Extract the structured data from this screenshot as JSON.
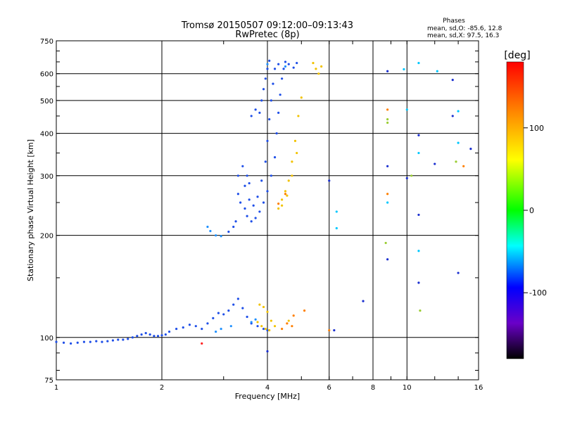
{
  "chart_data": {
    "type": "scatter",
    "title": "Tromsø 20150507 09:12:00–09:13:43",
    "subtitle": "RwPretec (8p)",
    "xlabel": "Frequency [MHz]",
    "ylabel": "Stationary phase Virtual Height [km]",
    "x_scale": "log",
    "y_scale": "log",
    "xlim": [
      1,
      16
    ],
    "ylim": [
      75,
      750
    ],
    "x_ticks": [
      1,
      2,
      4,
      6,
      8,
      10,
      16
    ],
    "y_ticks": [
      75,
      100,
      200,
      300,
      400,
      500,
      600,
      750
    ],
    "grid": true,
    "phases": {
      "title": "Phases",
      "line_o": "mean, sd,O: -85.6, 12.8",
      "line_x": "mean, sd,X:  97.5, 16.3"
    },
    "colorbar": {
      "label": "[deg]",
      "range": [
        -180,
        180
      ],
      "ticks": [
        100,
        0,
        -100
      ],
      "colors": [
        "#ff0000",
        "#ff8800",
        "#ffff00",
        "#00ff00",
        "#00ffff",
        "#0000ff",
        "#6a00c8",
        "#000000"
      ]
    },
    "series": [
      {
        "phase_deg": -95,
        "color": "#1f4fe8",
        "points": [
          [
            1.0,
            97
          ],
          [
            1.05,
            96.5
          ],
          [
            1.1,
            96
          ],
          [
            1.15,
            96.5
          ],
          [
            1.2,
            97
          ],
          [
            1.25,
            97
          ],
          [
            1.3,
            97.5
          ],
          [
            1.35,
            97
          ],
          [
            1.4,
            97.5
          ],
          [
            1.45,
            98
          ],
          [
            1.5,
            98.5
          ],
          [
            1.55,
            98.5
          ],
          [
            1.6,
            99
          ],
          [
            1.65,
            100
          ],
          [
            1.7,
            101
          ],
          [
            1.75,
            102
          ],
          [
            1.8,
            103
          ],
          [
            1.85,
            102
          ],
          [
            1.9,
            101
          ],
          [
            1.95,
            101
          ],
          [
            2.0,
            101.5
          ],
          [
            2.05,
            102
          ],
          [
            2.1,
            104
          ],
          [
            2.2,
            106
          ],
          [
            2.3,
            107
          ],
          [
            2.4,
            109
          ],
          [
            2.5,
            108
          ],
          [
            2.6,
            106
          ],
          [
            2.7,
            110
          ],
          [
            2.8,
            114
          ],
          [
            2.9,
            118
          ],
          [
            3.0,
            117
          ],
          [
            3.1,
            120
          ],
          [
            3.2,
            125
          ],
          [
            3.3,
            130
          ],
          [
            3.4,
            122
          ],
          [
            3.5,
            115
          ],
          [
            3.6,
            110
          ],
          [
            3.75,
            108
          ],
          [
            3.9,
            106
          ],
          [
            4.0,
            105
          ],
          [
            3.3,
            265
          ],
          [
            3.3,
            300
          ],
          [
            3.35,
            250
          ],
          [
            3.45,
            240
          ],
          [
            3.5,
            228
          ],
          [
            3.6,
            220
          ],
          [
            3.7,
            225
          ],
          [
            3.8,
            235
          ],
          [
            3.9,
            250
          ],
          [
            4.0,
            270
          ],
          [
            4.1,
            300
          ],
          [
            4.2,
            340
          ],
          [
            4.25,
            400
          ],
          [
            4.3,
            460
          ],
          [
            4.35,
            520
          ],
          [
            4.4,
            580
          ],
          [
            4.45,
            620
          ],
          [
            4.5,
            650
          ],
          [
            3.45,
            280
          ],
          [
            3.55,
            255
          ],
          [
            3.65,
            245
          ],
          [
            3.75,
            260
          ],
          [
            3.85,
            290
          ],
          [
            3.95,
            330
          ],
          [
            4.0,
            380
          ],
          [
            4.05,
            440
          ],
          [
            4.1,
            500
          ],
          [
            4.15,
            560
          ],
          [
            4.2,
            620
          ],
          [
            4.3,
            640
          ],
          [
            4.6,
            640
          ],
          [
            4.75,
            625
          ],
          [
            4.85,
            645
          ],
          [
            3.1,
            205
          ],
          [
            3.2,
            212
          ],
          [
            3.25,
            220
          ],
          [
            3.4,
            320
          ],
          [
            3.5,
            300
          ],
          [
            3.55,
            285
          ],
          [
            3.8,
            460
          ],
          [
            3.85,
            500
          ],
          [
            3.9,
            540
          ],
          [
            3.95,
            580
          ],
          [
            4.0,
            620
          ],
          [
            4.05,
            655
          ],
          [
            3.6,
            450
          ],
          [
            3.7,
            470
          ]
        ]
      },
      {
        "phase_deg": -85,
        "color": "#1e90ff",
        "points": [
          [
            2.7,
            212
          ],
          [
            2.75,
            206
          ],
          [
            2.85,
            200
          ],
          [
            2.95,
            199
          ],
          [
            2.85,
            104
          ],
          [
            2.95,
            106
          ],
          [
            3.15,
            108
          ],
          [
            3.6,
            111
          ],
          [
            3.7,
            113
          ],
          [
            4.5,
            630
          ],
          [
            4.0,
            640
          ]
        ]
      },
      {
        "phase_deg": 95,
        "color": "#f2c200",
        "points": [
          [
            3.8,
            125
          ],
          [
            3.9,
            123
          ],
          [
            4.0,
            119
          ],
          [
            4.1,
            112
          ],
          [
            4.2,
            108
          ],
          [
            4.05,
            105
          ],
          [
            3.95,
            106
          ],
          [
            3.85,
            108
          ],
          [
            3.75,
            111
          ],
          [
            4.6,
            112
          ],
          [
            4.3,
            240
          ],
          [
            4.4,
            255
          ],
          [
            4.5,
            270
          ],
          [
            4.6,
            290
          ],
          [
            4.7,
            330
          ],
          [
            4.8,
            380
          ],
          [
            4.9,
            450
          ],
          [
            5.0,
            510
          ],
          [
            4.4,
            245
          ],
          [
            4.55,
            262
          ],
          [
            4.7,
            300
          ],
          [
            4.85,
            350
          ],
          [
            5.4,
            645
          ],
          [
            5.5,
            620
          ],
          [
            5.6,
            600
          ],
          [
            5.7,
            630
          ]
        ]
      },
      {
        "phase_deg": 140,
        "color": "#ff7f00",
        "points": [
          [
            4.4,
            106
          ],
          [
            4.55,
            110
          ],
          [
            4.7,
            108
          ],
          [
            4.3,
            248
          ],
          [
            4.5,
            265
          ],
          [
            4.75,
            116
          ],
          [
            5.1,
            120
          ],
          [
            6.0,
            105
          ],
          [
            8.8,
            265
          ],
          [
            8.8,
            470
          ],
          [
            14.5,
            320
          ]
        ]
      },
      {
        "phase_deg": -110,
        "color": "#1a2fd0",
        "points": [
          [
            6.0,
            290
          ],
          [
            6.2,
            105
          ],
          [
            7.5,
            128
          ],
          [
            8.8,
            320
          ],
          [
            8.8,
            170
          ],
          [
            8.8,
            610
          ],
          [
            10.0,
            295
          ],
          [
            10.8,
            230
          ],
          [
            10.8,
            145
          ],
          [
            10.8,
            395
          ],
          [
            13.5,
            575
          ],
          [
            13.5,
            450
          ],
          [
            14.0,
            155
          ],
          [
            15.2,
            360
          ],
          [
            12.0,
            325
          ],
          [
            4.0,
            91
          ]
        ]
      },
      {
        "phase_deg": -70,
        "color": "#00c8ff",
        "points": [
          [
            6.3,
            235
          ],
          [
            6.3,
            210
          ],
          [
            8.8,
            250
          ],
          [
            9.8,
            618
          ],
          [
            10.8,
            645
          ],
          [
            10.8,
            350
          ],
          [
            10.8,
            180
          ],
          [
            14.0,
            375
          ],
          [
            14.0,
            465
          ],
          [
            12.2,
            610
          ],
          [
            10.0,
            470
          ]
        ]
      },
      {
        "phase_deg": 60,
        "color": "#9acd32",
        "points": [
          [
            8.8,
            430
          ],
          [
            8.8,
            440
          ],
          [
            8.7,
            190
          ],
          [
            10.3,
            300
          ],
          [
            10.9,
            120
          ],
          [
            13.8,
            330
          ]
        ]
      },
      {
        "phase_deg": 170,
        "color": "#ff2020",
        "points": [
          [
            2.6,
            96
          ]
        ]
      }
    ]
  }
}
